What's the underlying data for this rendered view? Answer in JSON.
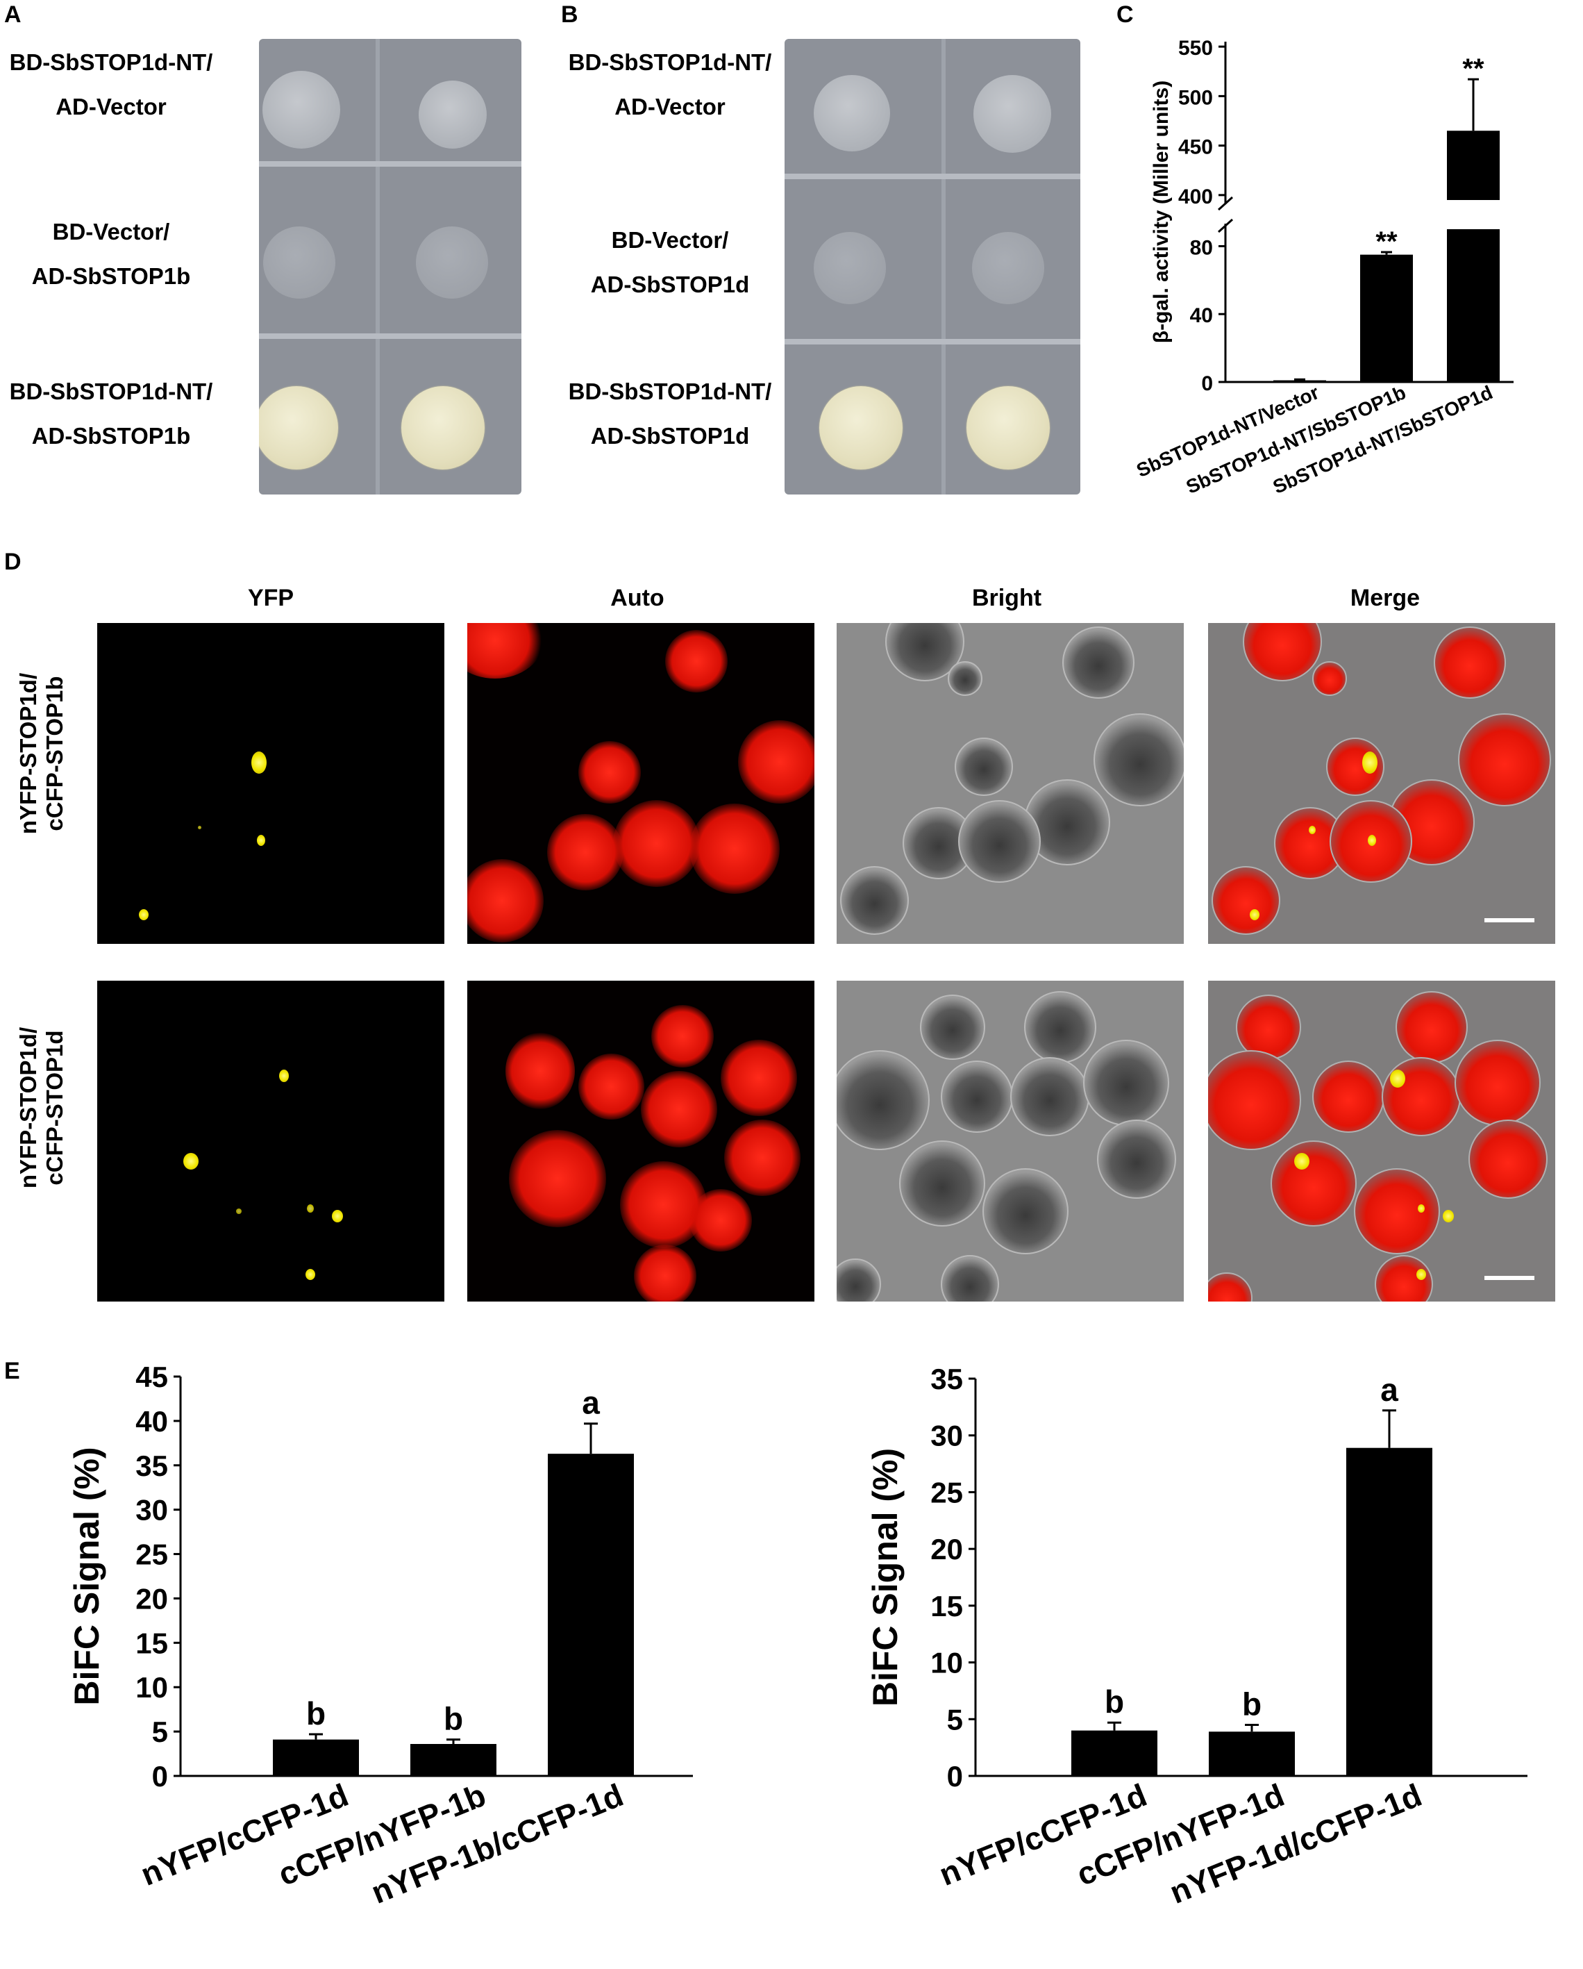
{
  "panel_labels": {
    "A": "A",
    "B": "B",
    "C": "C",
    "D": "D",
    "E": "E"
  },
  "panel_a": {
    "rows": [
      {
        "line1": "BD-SbSTOP1d-NT/",
        "line2": "AD-Vector",
        "growth": "faint"
      },
      {
        "line1": "BD-Vector/",
        "line2": "AD-SbSTOP1b",
        "growth": "very-faint"
      },
      {
        "line1": "BD-SbSTOP1d-NT/",
        "line2": "AD-SbSTOP1b",
        "growth": "strong"
      }
    ]
  },
  "panel_b": {
    "rows": [
      {
        "line1": "BD-SbSTOP1d-NT/",
        "line2": "AD-Vector",
        "growth": "faint"
      },
      {
        "line1": "BD-Vector/",
        "line2": "AD-SbSTOP1d",
        "growth": "very-faint"
      },
      {
        "line1": "BD-SbSTOP1d-NT/",
        "line2": "AD-SbSTOP1d",
        "growth": "strong"
      }
    ]
  },
  "chart_data": [
    {
      "id": "panel-c",
      "type": "bar",
      "ylabel": "β-gal. activity (Miller units)",
      "categories": [
        "SbSTOP1d-NT/Vector",
        "SbSTOP1d-NT/SbSTOP1b",
        "SbSTOP1d-NT/SbSTOP1d"
      ],
      "values": [
        1,
        75,
        465
      ],
      "errors": [
        0.5,
        1.5,
        52
      ],
      "annotations": [
        "",
        "**",
        "**"
      ],
      "axis_break": {
        "lower_ylim": [
          0,
          90
        ],
        "lower_ticks": [
          0,
          40,
          80
        ],
        "upper_ylim": [
          395,
          555
        ],
        "upper_ticks": [
          400,
          450,
          500,
          550
        ]
      }
    },
    {
      "id": "panel-e-left",
      "type": "bar",
      "ylabel": "BiFC Signal (%)",
      "categories": [
        "nYFP/cCFP-1d",
        "cCFP/nYFP-1b",
        "nYFP-1b/cCFP-1d"
      ],
      "values": [
        4.1,
        3.6,
        36.3
      ],
      "errors": [
        0.6,
        0.5,
        3.4
      ],
      "annotations": [
        "b",
        "b",
        "a"
      ],
      "ylim": [
        0,
        45
      ],
      "ticks": [
        0,
        5,
        10,
        15,
        20,
        25,
        30,
        35,
        40,
        45
      ]
    },
    {
      "id": "panel-e-right",
      "type": "bar",
      "ylabel": "BiFC Signal (%)",
      "categories": [
        "nYFP/cCFP-1d",
        "cCFP/nYFP-1d",
        "nYFP-1d/cCFP-1d"
      ],
      "values": [
        4.0,
        3.9,
        28.9
      ],
      "errors": [
        0.7,
        0.6,
        3.3
      ],
      "annotations": [
        "b",
        "b",
        "a"
      ],
      "ylim": [
        0,
        35
      ],
      "ticks": [
        0,
        5,
        10,
        15,
        20,
        25,
        30,
        35
      ]
    }
  ],
  "panel_d": {
    "columns": [
      "YFP",
      "Auto",
      "Bright",
      "Merge"
    ],
    "rows": [
      {
        "line1": "nYFP-STOP1d/",
        "line2": "cCFP-STOP1b"
      },
      {
        "line1": "nYFP-STOP1d/",
        "line2": "cCFP-STOP1d"
      }
    ]
  },
  "colors": {
    "bar": "#000000",
    "yfp": "#f1e600",
    "auto": "#e01206"
  }
}
